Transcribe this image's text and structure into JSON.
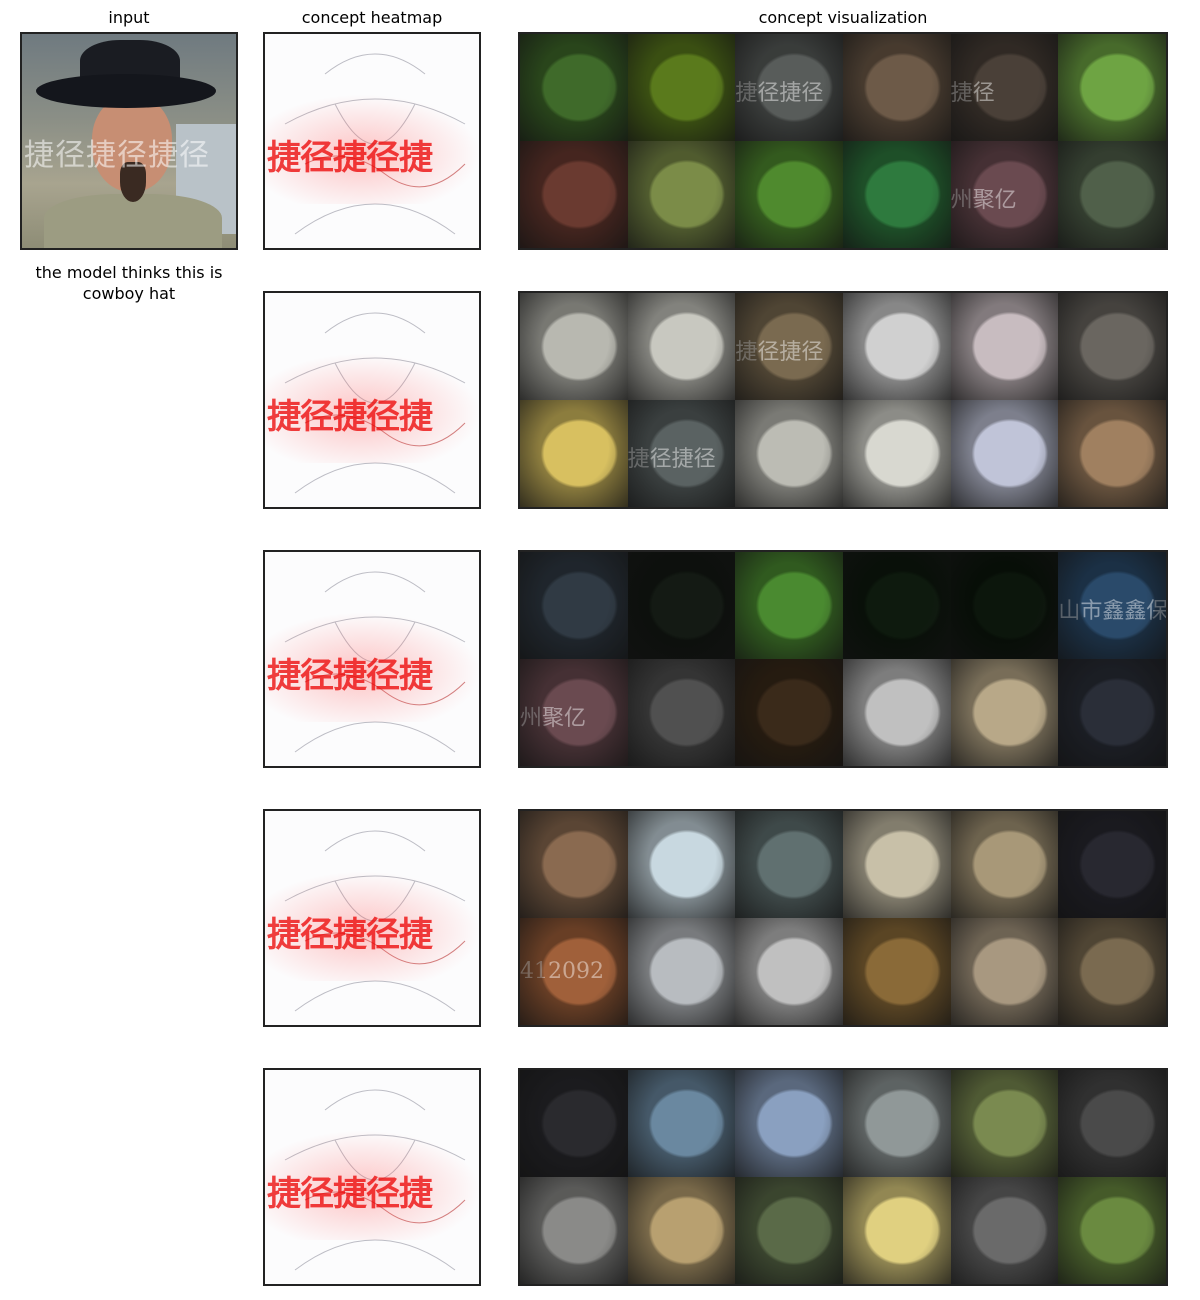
{
  "headers": {
    "input": "input",
    "heatmap": "concept heatmap",
    "visualization": "concept visualization"
  },
  "input_image": {
    "watermark": "捷径捷径捷径"
  },
  "caption": "the model thinks this is cowboy hat",
  "heatmap_watermark": "捷径捷径捷",
  "concepts": [
    {
      "tiles": [
        {
          "color": "#3f6a2a",
          "text": ""
        },
        {
          "color": "#5a7a1c",
          "text": ""
        },
        {
          "color": "#585c5a",
          "text": "捷径捷径"
        },
        {
          "color": "#6d5a48",
          "text": ""
        },
        {
          "color": "#4a4038",
          "text": "捷径"
        },
        {
          "color": "#6ea443",
          "text": ""
        },
        {
          "color": "#6a3a30",
          "text": ""
        },
        {
          "color": "#7b8c48",
          "text": ""
        },
        {
          "color": "#4f8a2e",
          "text": ""
        },
        {
          "color": "#2e7a3e",
          "text": ""
        },
        {
          "color": "#6a4a50",
          "text": "州聚亿"
        },
        {
          "color": "#50604a",
          "text": ""
        }
      ]
    },
    {
      "tiles": [
        {
          "color": "#b8b8b0",
          "text": ""
        },
        {
          "color": "#c8c8c0",
          "text": ""
        },
        {
          "color": "#7a6a50",
          "text": "捷径捷径"
        },
        {
          "color": "#d0d0d0",
          "text": ""
        },
        {
          "color": "#c8bcc0",
          "text": ""
        },
        {
          "color": "#6a6660",
          "text": ""
        },
        {
          "color": "#d8c060",
          "text": ""
        },
        {
          "color": "#5a6262",
          "text": "捷径捷径"
        },
        {
          "color": "#bcbcb4",
          "text": ""
        },
        {
          "color": "#d8d8d0",
          "text": ""
        },
        {
          "color": "#c0c4d8",
          "text": ""
        },
        {
          "color": "#a08060",
          "text": ""
        }
      ]
    },
    {
      "tiles": [
        {
          "color": "#303a44",
          "text": ""
        },
        {
          "color": "#141a14",
          "text": ""
        },
        {
          "color": "#4a8a30",
          "text": ""
        },
        {
          "color": "#0e1a0e",
          "text": ""
        },
        {
          "color": "#0c160c",
          "text": ""
        },
        {
          "color": "#2a4a6a",
          "text": "山市鑫鑫保险"
        },
        {
          "color": "#6a4a50",
          "text": "州聚亿"
        },
        {
          "color": "#505050",
          "text": ""
        },
        {
          "color": "#3a2a1a",
          "text": ""
        },
        {
          "color": "#c0c0c0",
          "text": ""
        },
        {
          "color": "#b8a888",
          "text": ""
        },
        {
          "color": "#2a2e38",
          "text": ""
        }
      ]
    },
    {
      "tiles": [
        {
          "color": "#8a6a50",
          "text": ""
        },
        {
          "color": "#c8d8e0",
          "text": ""
        },
        {
          "color": "#607070",
          "text": ""
        },
        {
          "color": "#c8c0a8",
          "text": ""
        },
        {
          "color": "#a89878",
          "text": ""
        },
        {
          "color": "#282830",
          "text": ""
        },
        {
          "color": "#a0603a",
          "text": "412092"
        },
        {
          "color": "#b8bcc0",
          "text": ""
        },
        {
          "color": "#c0c0c0",
          "text": ""
        },
        {
          "color": "#8a6a38",
          "text": ""
        },
        {
          "color": "#a89880",
          "text": ""
        },
        {
          "color": "#7a6a50",
          "text": ""
        }
      ]
    },
    {
      "tiles": [
        {
          "color": "#2a2a2e",
          "text": ""
        },
        {
          "color": "#6a88a0",
          "text": ""
        },
        {
          "color": "#8aa0c0",
          "text": ""
        },
        {
          "color": "#909898",
          "text": ""
        },
        {
          "color": "#7a8a50",
          "text": ""
        },
        {
          "color": "#4a4a4a",
          "text": ""
        },
        {
          "color": "#8a8a88",
          "text": ""
        },
        {
          "color": "#b8a070",
          "text": ""
        },
        {
          "color": "#5a6a48",
          "text": ""
        },
        {
          "color": "#e0d080",
          "text": ""
        },
        {
          "color": "#6a6a6a",
          "text": ""
        },
        {
          "color": "#6a8a40",
          "text": ""
        }
      ]
    }
  ]
}
